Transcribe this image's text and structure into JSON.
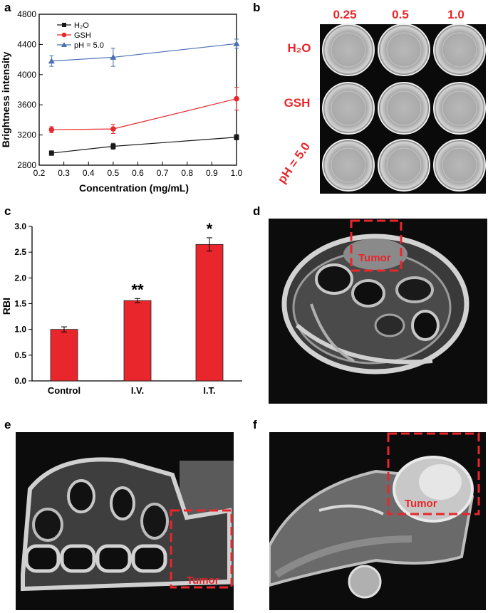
{
  "panels": {
    "a": "a",
    "b": "b",
    "c": "c",
    "d": "d",
    "e": "e",
    "f": "f"
  },
  "colors": {
    "h2o": "#1a1a1a",
    "gsh": "#e8262b",
    "ph": "#4a6fb3",
    "bar": "#e8262b",
    "annotation": "#e8262b"
  },
  "chart_data": [
    {
      "panel": "a",
      "type": "line",
      "xlabel": "Concentration (mg/mL)",
      "ylabel": "Brightness intensity",
      "xlim": [
        0.2,
        1.0
      ],
      "ylim": [
        2800,
        4800
      ],
      "xticks": [
        "0.2",
        "0.3",
        "0.4",
        "0.5",
        "0.6",
        "0.7",
        "0.8",
        "0.9",
        "1.0"
      ],
      "yticks": [
        "2800",
        "3200",
        "3600",
        "4000",
        "4400",
        "4800"
      ],
      "legend_position": "top-left",
      "x": [
        0.25,
        0.5,
        1.0
      ],
      "series": [
        {
          "name": "H₂O",
          "values": [
            2960,
            3050,
            3170
          ],
          "errors": [
            30,
            40,
            35
          ],
          "marker": "square"
        },
        {
          "name": "GSH",
          "values": [
            3270,
            3280,
            3680
          ],
          "errors": [
            40,
            60,
            150
          ],
          "marker": "circle"
        },
        {
          "name": "pH = 5.0",
          "values": [
            4180,
            4230,
            4410
          ],
          "errors": [
            70,
            120,
            60
          ],
          "marker": "triangle"
        }
      ]
    },
    {
      "panel": "c",
      "type": "bar",
      "ylabel": "RBI",
      "ylim": [
        0.0,
        3.0
      ],
      "yticks": [
        "0.0",
        "0.5",
        "1.0",
        "1.5",
        "2.0",
        "2.5",
        "3.0"
      ],
      "categories": [
        "Control",
        "I.V.",
        "I.T."
      ],
      "values": [
        1.0,
        1.56,
        2.65
      ],
      "errors": [
        0.05,
        0.04,
        0.13
      ],
      "annotations": [
        "",
        "**",
        "*"
      ]
    }
  ],
  "panel_b": {
    "columns": [
      "0.25",
      "0.5",
      "1.0"
    ],
    "rows": [
      "H₂O",
      "GSH",
      "pH = 5.0"
    ]
  },
  "tumor_label": "Tumor"
}
